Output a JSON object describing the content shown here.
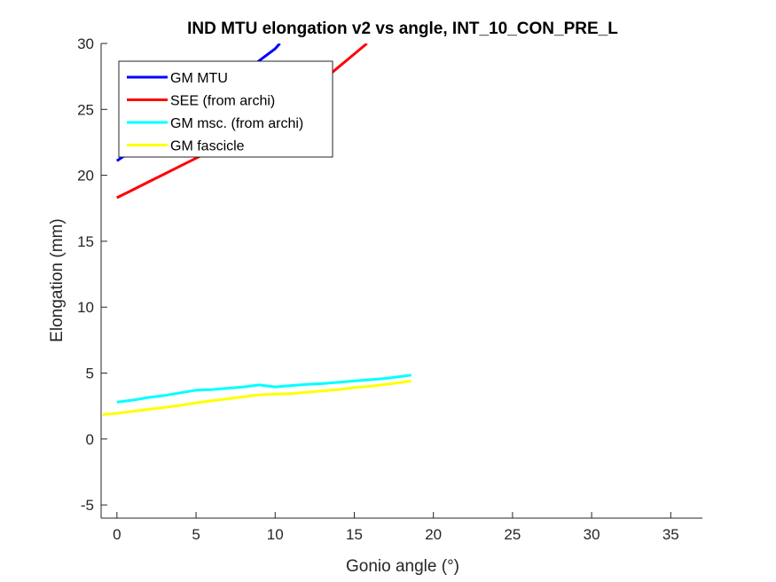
{
  "chart_data": {
    "type": "line",
    "title": "IND MTU elongation v2 vs angle, INT_10_CON_PRE_L",
    "xlabel": "Gonio angle (°)",
    "ylabel": "Elongation (mm)",
    "xlim": [
      -1,
      37
    ],
    "ylim": [
      -6,
      30
    ],
    "xticks": [
      0,
      5,
      10,
      15,
      20,
      25,
      30,
      35
    ],
    "yticks": [
      -5,
      0,
      5,
      10,
      15,
      20,
      25,
      30
    ],
    "grid": false,
    "legend_position": "top-left",
    "series": [
      {
        "name": "GM MTU",
        "color": "#0000ff",
        "x": [
          0,
          1,
          2,
          3,
          4,
          5,
          6,
          7,
          8,
          9,
          10,
          10.3
        ],
        "y": [
          21.1,
          21.9,
          22.7,
          23.5,
          24.4,
          25.2,
          26.1,
          26.9,
          27.8,
          28.7,
          29.6,
          30.0
        ]
      },
      {
        "name": "SEE (from archi)",
        "color": "#ff0000",
        "x": [
          0,
          1,
          2,
          3,
          4,
          5,
          6,
          7,
          8,
          9,
          10,
          11,
          12,
          13,
          14,
          15,
          15.8
        ],
        "y": [
          18.3,
          18.9,
          19.5,
          20.1,
          20.7,
          21.3,
          21.9,
          22.5,
          23.2,
          23.9,
          24.6,
          25.4,
          26.3,
          27.2,
          28.2,
          29.2,
          30.0
        ]
      },
      {
        "name": "GM msc. (from archi)",
        "color": "#00ffff",
        "x": [
          0,
          1,
          2,
          3,
          4,
          5,
          6,
          7,
          8,
          9,
          10,
          11,
          12,
          13,
          14,
          15,
          16,
          17,
          18,
          18.6
        ],
        "y": [
          2.8,
          2.95,
          3.15,
          3.3,
          3.5,
          3.7,
          3.75,
          3.85,
          3.95,
          4.1,
          3.95,
          4.05,
          4.15,
          4.2,
          4.3,
          4.4,
          4.5,
          4.6,
          4.75,
          4.85
        ]
      },
      {
        "name": "GM fascicle",
        "color": "#ffff00",
        "x": [
          -0.9,
          0,
          1,
          2,
          3,
          4,
          5,
          6,
          7,
          8,
          9,
          10,
          11,
          12,
          13,
          14,
          15,
          16,
          17,
          18,
          18.6
        ],
        "y": [
          1.85,
          1.95,
          2.1,
          2.25,
          2.4,
          2.55,
          2.75,
          2.9,
          3.05,
          3.2,
          3.35,
          3.4,
          3.45,
          3.55,
          3.65,
          3.75,
          3.9,
          4.0,
          4.15,
          4.3,
          4.4
        ]
      }
    ]
  }
}
